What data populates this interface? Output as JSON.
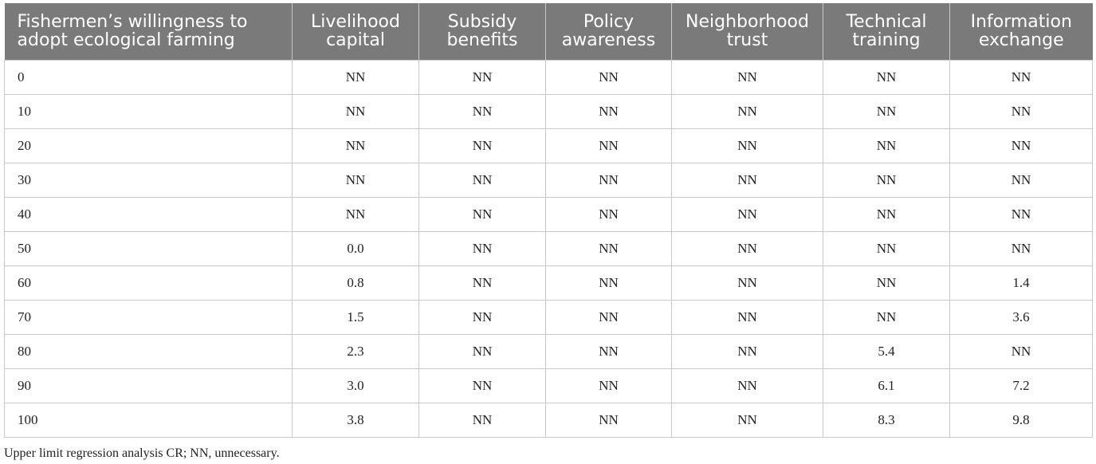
{
  "table": {
    "headers": [
      "Fishermen’s willingness to adopt ecological farming",
      "Livelihood capital",
      "Subsidy benefits",
      "Policy awareness",
      "Neighborhood trust",
      "Technical training",
      "Information exchange"
    ],
    "rows": [
      [
        "0",
        "NN",
        "NN",
        "NN",
        "NN",
        "NN",
        "NN"
      ],
      [
        "10",
        "NN",
        "NN",
        "NN",
        "NN",
        "NN",
        "NN"
      ],
      [
        "20",
        "NN",
        "NN",
        "NN",
        "NN",
        "NN",
        "NN"
      ],
      [
        "30",
        "NN",
        "NN",
        "NN",
        "NN",
        "NN",
        "NN"
      ],
      [
        "40",
        "NN",
        "NN",
        "NN",
        "NN",
        "NN",
        "NN"
      ],
      [
        "50",
        "0.0",
        "NN",
        "NN",
        "NN",
        "NN",
        "NN"
      ],
      [
        "60",
        "0.8",
        "NN",
        "NN",
        "NN",
        "NN",
        "1.4"
      ],
      [
        "70",
        "1.5",
        "NN",
        "NN",
        "NN",
        "NN",
        "3.6"
      ],
      [
        "80",
        "2.3",
        "NN",
        "NN",
        "NN",
        "5.4",
        "NN"
      ],
      [
        "90",
        "3.0",
        "NN",
        "NN",
        "NN",
        "6.1",
        "7.2"
      ],
      [
        "100",
        "3.8",
        "NN",
        "NN",
        "NN",
        "8.3",
        "9.8"
      ]
    ]
  },
  "footnote": "Upper limit regression analysis CR; NN, unnecessary."
}
